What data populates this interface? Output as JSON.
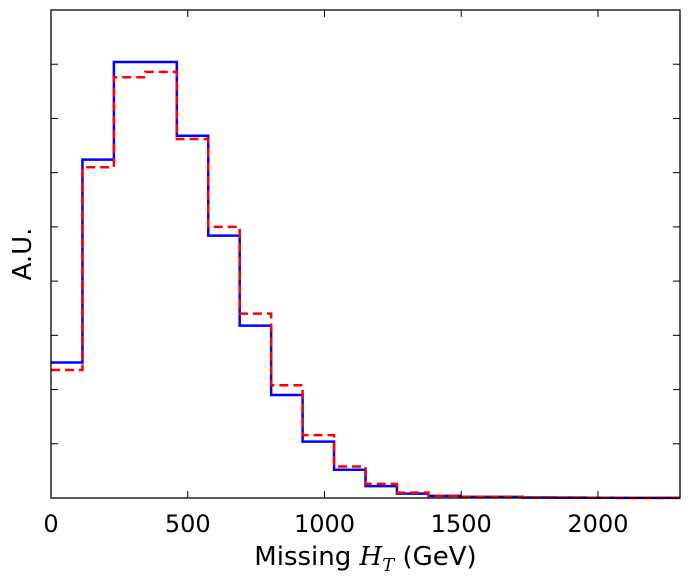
{
  "chart_data": {
    "type": "histogram",
    "xlabel": {
      "prefix": "Missing ",
      "symbol": "H",
      "subscript": "T",
      "suffix": " (GeV)"
    },
    "ylabel": "A.U.",
    "xlim": [
      0,
      2300
    ],
    "ylim": [
      0,
      0.45
    ],
    "x_ticks": [
      0,
      500,
      1000,
      1500,
      2000
    ],
    "x_tick_labels": [
      "0",
      "500",
      "1000",
      "1500",
      "2000"
    ],
    "y_ticks": [
      0.05,
      0.1,
      0.15,
      0.2,
      0.25,
      0.3,
      0.35,
      0.4
    ],
    "y_tick_labels_shown": false,
    "legend": "none",
    "grid": false,
    "bin_edges": [
      0,
      115,
      230,
      345,
      460,
      575,
      690,
      805,
      920,
      1035,
      1150,
      1265,
      1380,
      1495,
      1610,
      1725,
      1840,
      1955,
      2070,
      2185,
      2300
    ],
    "series": [
      {
        "color": "#0000ff",
        "line_style": "solid",
        "values": [
          0.125,
          0.312,
          0.402,
          0.402,
          0.334,
          0.242,
          0.159,
          0.095,
          0.052,
          0.026,
          0.011,
          0.004,
          0.002,
          0.001,
          0.001,
          0.0005,
          0.0003,
          0.0002,
          0.0001,
          0.0001
        ]
      },
      {
        "color": "#ff0000",
        "line_style": "dashed",
        "values": [
          0.118,
          0.305,
          0.388,
          0.393,
          0.331,
          0.25,
          0.17,
          0.104,
          0.058,
          0.029,
          0.013,
          0.005,
          0.002,
          0.001,
          0.001,
          0.0005,
          0.0003,
          0.0002,
          0.0001,
          0.0001
        ]
      }
    ]
  }
}
